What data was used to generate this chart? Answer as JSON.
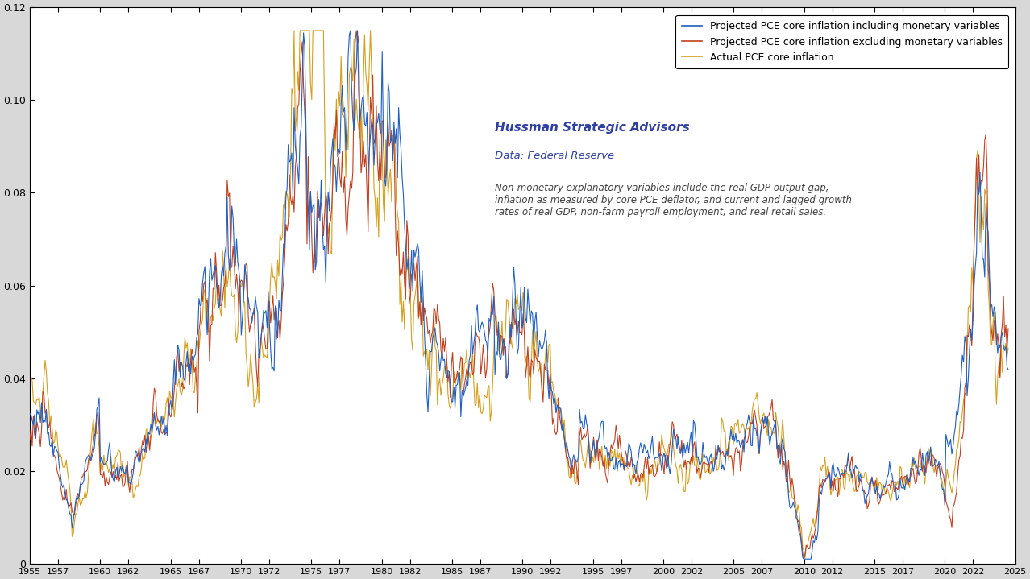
{
  "legend_labels": [
    "Projected PCE core inflation including monetary variables",
    "Projected PCE core inflation excluding monetary variables",
    "Actual PCE core inflation"
  ],
  "line_colors": [
    "#2060C0",
    "#C04020",
    "#D4A020"
  ],
  "annotation_title": "Hussman Strategic Advisors",
  "annotation_subtitle": "Data: Federal Reserve",
  "annotation_body": "Non-monetary explanatory variables include the real GDP output gap,\ninflation as measured by core PCE deflator, and current and lagged growth\nrates of real GDP, non-farm payroll employment, and real retail sales.",
  "annotation_title_color": "#3040A0",
  "annotation_subtitle_color": "#3040A0",
  "annotation_body_color": "#404040",
  "xlim": [
    1955,
    2025
  ],
  "ylim": [
    0,
    0.12
  ],
  "yticks": [
    0,
    0.02,
    0.04,
    0.06,
    0.08,
    0.1,
    0.12
  ],
  "xtick_years": [
    1955,
    1957,
    1960,
    1962,
    1965,
    1967,
    1970,
    1972,
    1975,
    1977,
    1980,
    1982,
    1985,
    1987,
    1990,
    1992,
    1995,
    1997,
    2000,
    2002,
    2005,
    2007,
    2010,
    2012,
    2015,
    2017,
    2020,
    2022,
    2025
  ],
  "background_color": "#D8D8D8",
  "plot_background": "#FFFFFF",
  "linewidth": 0.8
}
